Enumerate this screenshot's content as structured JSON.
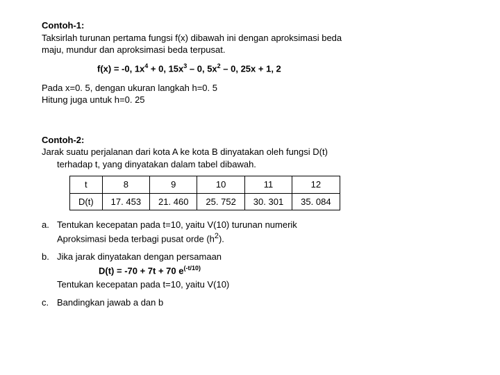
{
  "ex1": {
    "heading": "Contoh-1:",
    "prompt1": "Taksirlah turunan pertama fungsi f(x) dibawah ini dengan aproksimasi beda",
    "prompt2": "maju, mundur dan aproksimasi beda terpusat.",
    "formula_lead": "f(x) = -0, 1x",
    "p4": "4",
    "t2": " + 0, 15x",
    "p3": "3",
    "t3": " – 0, 5x",
    "p2": "2",
    "t4": " – 0, 25x + 1, 2",
    "note1": "Pada x=0. 5, dengan ukuran langkah  h=0. 5",
    "note2": "Hitung juga untuk  h=0. 25"
  },
  "ex2": {
    "heading": "Contoh-2:",
    "prompt1": "Jarak suatu perjalanan dari kota A ke kota B dinyatakan oleh fungsi D(t)",
    "prompt2": "terhadap t, yang dinyatakan dalam tabel dibawah.",
    "table": {
      "r0": {
        "c0": "t",
        "c1": "8",
        "c2": "9",
        "c3": "10",
        "c4": "11",
        "c5": "12"
      },
      "r1": {
        "c0": "D(t)",
        "c1": "17. 453",
        "c2": "21. 460",
        "c3": "25. 752",
        "c4": "30. 301",
        "c5": "35. 084"
      }
    },
    "a_lbl": "a.",
    "a_l1": "Tentukan kecepatan pada t=10, yaitu V(10) turunan numerik",
    "a_l2": "Aproksimasi beda terbagi pusat orde (h",
    "a_sup": "2",
    "a_l2b": ").",
    "b_lbl": "b.",
    "b_l1": "Jika jarak dinyatakan dengan persamaan",
    "eq_lead": "D(t) = -70 + 7t + 70 e",
    "eq_sup": "(-t/10)",
    "b_l2": "Tentukan kecepatan pada t=10, yaitu V(10)",
    "c_lbl": "c.",
    "c_l1": "Bandingkan jawab a dan b"
  }
}
